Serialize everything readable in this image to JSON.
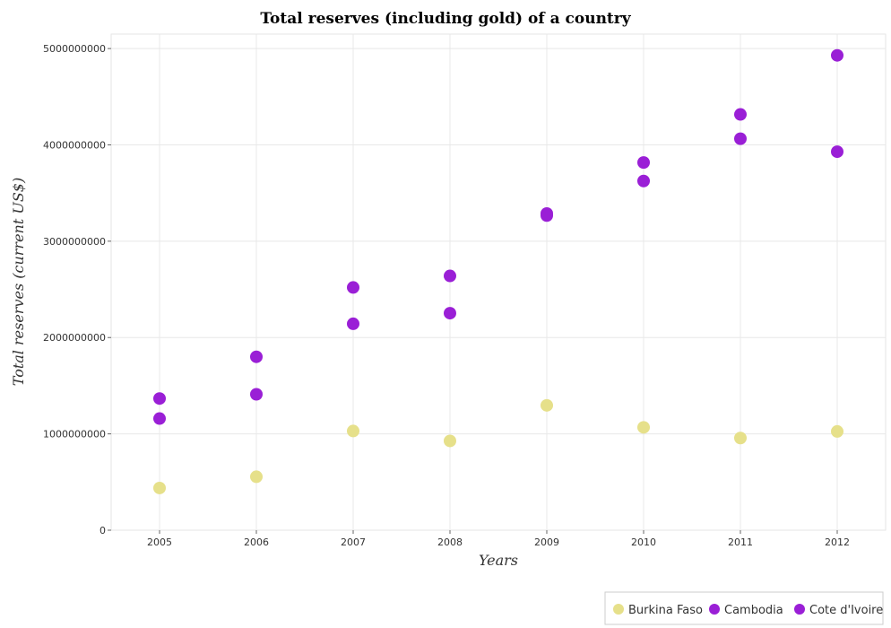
{
  "chart_data": {
    "type": "scatter",
    "title": "Total reserves (including gold) of a country",
    "xlabel": "Years",
    "ylabel": "Total reserves (current US$)",
    "categories": [
      "2005",
      "2006",
      "2007",
      "2008",
      "2009",
      "2010",
      "2011",
      "2012"
    ],
    "y_ticks": [
      "0",
      "1000000000",
      "2000000000",
      "3000000000",
      "4000000000",
      "5000000000"
    ],
    "ylim": [
      0,
      5150000000
    ],
    "grid": true,
    "legend_position": "bottom-right",
    "series": [
      {
        "name": "Burkina Faso",
        "color": "#e6e08a",
        "values": [
          438000000,
          555000000,
          1030000000,
          927000000,
          1296000000,
          1068000000,
          957000000,
          1025000000
        ]
      },
      {
        "name": "Cambodia",
        "color": "#9a1fd6",
        "values": [
          1159000000,
          1411000000,
          2143000000,
          2640000000,
          3288000000,
          3817000000,
          4064000000,
          4929000000
        ]
      },
      {
        "name": "Cote d'Ivoire",
        "color": "#9a1fd6",
        "values": [
          1367000000,
          1800000000,
          2520000000,
          2253000000,
          3266000000,
          3625000000,
          4316000000,
          3929000000
        ]
      }
    ]
  }
}
